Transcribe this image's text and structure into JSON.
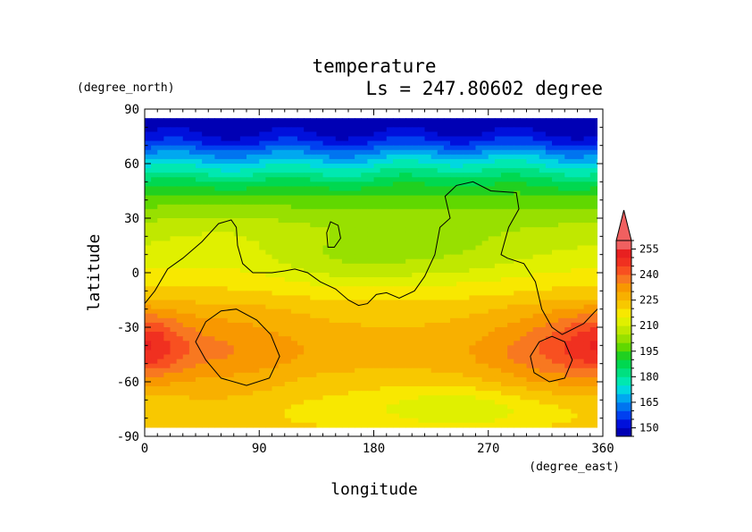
{
  "chart_data": {
    "type": "heatmap",
    "title": "temperature",
    "subtitle": "Ls = 247.80602 degree",
    "xlabel": "longitude",
    "ylabel": "latitude",
    "x_units": "(degree_east)",
    "y_units": "(degree_north)",
    "xlim": [
      0,
      360
    ],
    "ylim": [
      -90,
      90
    ],
    "x_ticks": [
      0,
      90,
      180,
      270,
      360
    ],
    "y_ticks": [
      90,
      60,
      30,
      0,
      -30,
      -60,
      -90
    ],
    "data_extent": {
      "lat_min": -85,
      "lat_max": 85
    },
    "colorbar": {
      "levels": [
        145,
        150,
        155,
        160,
        165,
        170,
        175,
        180,
        185,
        190,
        195,
        200,
        205,
        210,
        215,
        220,
        225,
        230,
        235,
        240,
        245,
        250,
        255,
        260
      ],
      "tick_labels": [
        150,
        165,
        180,
        195,
        210,
        225,
        240,
        255
      ],
      "colors": [
        "#0000b4",
        "#0010dc",
        "#0040f0",
        "#0074f0",
        "#00a8f0",
        "#00d8e0",
        "#00e8b0",
        "#00e080",
        "#00d850",
        "#20d020",
        "#60d800",
        "#98e000",
        "#c0e800",
        "#e0f000",
        "#f8e800",
        "#f8c800",
        "#f8b000",
        "#f89800",
        "#f87820",
        "#f85020",
        "#f03020",
        "#e82020",
        "#f06060"
      ],
      "extend": "max"
    },
    "zonal_profile": {
      "lat": [
        85,
        80,
        75,
        70,
        65,
        60,
        55,
        50,
        45,
        40,
        35,
        30,
        25,
        20,
        15,
        10,
        5,
        0,
        -5,
        -10,
        -15,
        -20,
        -25,
        -30,
        -35,
        -40,
        -45,
        -50,
        -55,
        -60,
        -65,
        -70,
        -75,
        -80,
        -85
      ],
      "temp": [
        145,
        147,
        151,
        157,
        165,
        172,
        179,
        186,
        192,
        197,
        200,
        203,
        206,
        208,
        210,
        212,
        214,
        216,
        218,
        219,
        221,
        223,
        224,
        225,
        226,
        227,
        227,
        226,
        224,
        222,
        220,
        218,
        217,
        218,
        220
      ]
    },
    "anomalies": [
      {
        "lon": 60,
        "lat": -42,
        "amp": 8,
        "slon": 45,
        "slat": 18
      },
      {
        "lon": 5,
        "lat": -40,
        "amp": 10,
        "slon": 20,
        "slat": 12
      },
      {
        "lon": 320,
        "lat": -45,
        "amp": 11,
        "slon": 40,
        "slat": 18
      },
      {
        "lon": 345,
        "lat": -35,
        "amp": 6,
        "slon": 25,
        "slat": 12
      },
      {
        "lon": 60,
        "lat": -72,
        "amp": 4,
        "slon": 50,
        "slat": 8
      },
      {
        "lon": 150,
        "lat": 5,
        "amp": -6,
        "slon": 40,
        "slat": 10
      },
      {
        "lon": 230,
        "lat": 8,
        "amp": -7,
        "slon": 55,
        "slat": 12
      },
      {
        "lon": 250,
        "lat": -75,
        "amp": -7,
        "slon": 40,
        "slat": 8
      },
      {
        "lon": 60,
        "lat": 25,
        "amp": 3,
        "slon": 40,
        "slat": 10
      },
      {
        "lon": 250,
        "lat": 60,
        "amp": 4,
        "slon": 50,
        "slat": 10
      }
    ],
    "contour_lines": [
      {
        "closed": false,
        "points": [
          [
            0,
            -17
          ],
          [
            8,
            -10
          ],
          [
            18,
            2
          ],
          [
            30,
            8
          ],
          [
            45,
            17
          ],
          [
            58,
            27
          ],
          [
            68,
            29
          ],
          [
            72,
            25
          ],
          [
            73,
            15
          ],
          [
            77,
            5
          ],
          [
            85,
            0
          ],
          [
            100,
            0
          ],
          [
            110,
            1
          ],
          [
            118,
            2
          ],
          [
            128,
            0
          ],
          [
            138,
            -5
          ],
          [
            150,
            -9
          ],
          [
            160,
            -15
          ],
          [
            168,
            -18
          ],
          [
            175,
            -17
          ],
          [
            182,
            -12
          ],
          [
            190,
            -11
          ],
          [
            200,
            -14
          ],
          [
            212,
            -10
          ],
          [
            220,
            -2
          ],
          [
            228,
            10
          ],
          [
            232,
            25
          ],
          [
            240,
            30
          ],
          [
            236,
            42
          ],
          [
            245,
            48
          ],
          [
            258,
            50
          ],
          [
            272,
            45
          ],
          [
            292,
            44
          ],
          [
            294,
            35
          ],
          [
            286,
            25
          ],
          [
            280,
            10
          ],
          [
            285,
            8
          ],
          [
            298,
            5
          ],
          [
            307,
            -5
          ],
          [
            312,
            -20
          ],
          [
            320,
            -30
          ],
          [
            328,
            -34
          ],
          [
            345,
            -28
          ],
          [
            353,
            -22
          ],
          [
            360,
            -17
          ]
        ]
      },
      {
        "closed": true,
        "points": [
          [
            143,
            22
          ],
          [
            146,
            28
          ],
          [
            152,
            26
          ],
          [
            154,
            19
          ],
          [
            149,
            14
          ],
          [
            144,
            14
          ]
        ]
      },
      {
        "closed": true,
        "points": [
          [
            48,
            -27
          ],
          [
            60,
            -21
          ],
          [
            72,
            -20
          ],
          [
            88,
            -26
          ],
          [
            99,
            -34
          ],
          [
            106,
            -46
          ],
          [
            98,
            -58
          ],
          [
            80,
            -62
          ],
          [
            60,
            -58
          ],
          [
            48,
            -48
          ],
          [
            40,
            -38
          ]
        ]
      },
      {
        "closed": true,
        "points": [
          [
            310,
            -38
          ],
          [
            320,
            -35
          ],
          [
            330,
            -38
          ],
          [
            336,
            -48
          ],
          [
            330,
            -58
          ],
          [
            318,
            -60
          ],
          [
            306,
            -55
          ],
          [
            303,
            -46
          ]
        ]
      }
    ]
  }
}
